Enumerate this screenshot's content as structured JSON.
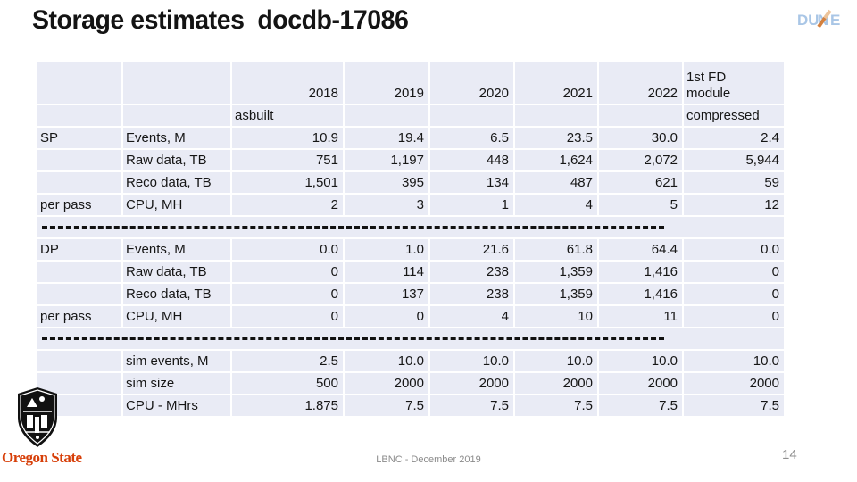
{
  "slide": {
    "title": "Storage estimates  docdb-17086",
    "footer": "LBNC - December 2019",
    "page_number": "14"
  },
  "logos": {
    "dune": {
      "letters_left": "DU",
      "letter_n": "N",
      "letters_right": "E"
    },
    "oregon_state": {
      "text": "Oregon State"
    }
  },
  "colors": {
    "table_cell_fill": "#e9ebf5",
    "dashed_separator": "#111111",
    "footer_gray": "#8b8b8b",
    "osu_orange": "#d73f09",
    "dune_blue": "#a9c6e6",
    "dune_orange": "#dd9a62"
  },
  "table": {
    "years": [
      "2018",
      "2019",
      "2020",
      "2021",
      "2022"
    ],
    "last_col_header": {
      "line1": "1st FD",
      "line2": "module"
    },
    "subheader": {
      "col_2018": "asbuilt",
      "last_col": "compressed"
    },
    "body_rows": [
      {
        "type": "data",
        "group": "SP",
        "label": "Events, M",
        "values": [
          "10.9",
          "19.4",
          "6.5",
          "23.5",
          "30.0",
          "2.4"
        ]
      },
      {
        "type": "data",
        "group": "",
        "label": "Raw data, TB",
        "values": [
          "751",
          "1,197",
          "448",
          "1,624",
          "2,072",
          "5,944"
        ]
      },
      {
        "type": "data",
        "group": "",
        "label": "Reco data, TB",
        "values": [
          "1,501",
          "395",
          "134",
          "487",
          "621",
          "59"
        ]
      },
      {
        "type": "data",
        "group": "per pass",
        "label": "CPU, MH",
        "values": [
          "2",
          "3",
          "1",
          "4",
          "5",
          "12"
        ]
      },
      {
        "type": "separator"
      },
      {
        "type": "data",
        "group": "DP",
        "label": "Events, M",
        "values": [
          "0.0",
          "1.0",
          "21.6",
          "61.8",
          "64.4",
          "0.0"
        ]
      },
      {
        "type": "data",
        "group": "",
        "label": "Raw data, TB",
        "values": [
          "0",
          "114",
          "238",
          "1,359",
          "1,416",
          "0"
        ]
      },
      {
        "type": "data",
        "group": "",
        "label": "Reco data, TB",
        "values": [
          "0",
          "137",
          "238",
          "1,359",
          "1,416",
          "0"
        ]
      },
      {
        "type": "data",
        "group": "per pass",
        "label": "CPU, MH",
        "values": [
          "0",
          "0",
          "4",
          "10",
          "11",
          "0"
        ]
      },
      {
        "type": "separator"
      },
      {
        "type": "data",
        "group": "",
        "label": "sim events, M",
        "values": [
          "2.5",
          "10.0",
          "10.0",
          "10.0",
          "10.0",
          "10.0"
        ]
      },
      {
        "type": "data",
        "group": "",
        "label": "sim size",
        "values": [
          "500",
          "2000",
          "2000",
          "2000",
          "2000",
          "2000"
        ]
      },
      {
        "type": "data",
        "group": "",
        "label": "CPU - MHrs",
        "values": [
          "1.875",
          "7.5",
          "7.5",
          "7.5",
          "7.5",
          "7.5"
        ]
      }
    ]
  }
}
